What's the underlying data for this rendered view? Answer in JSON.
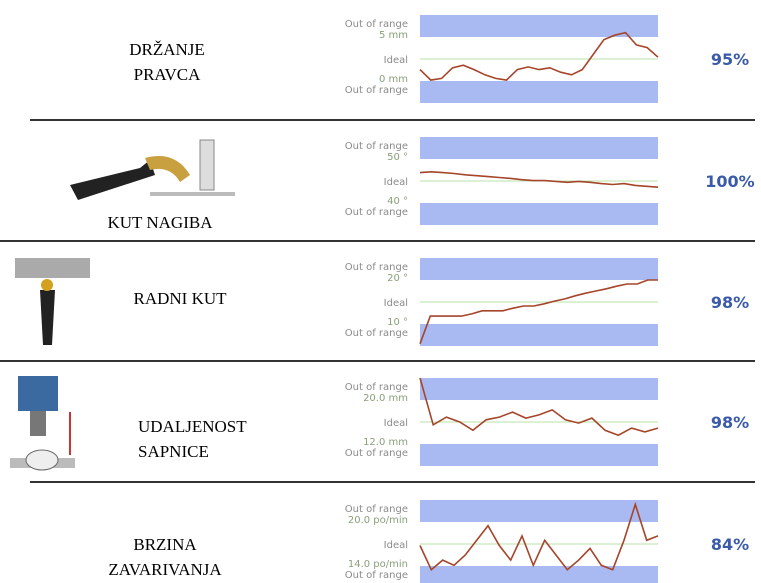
{
  "rows": [
    {
      "label": [
        "DRŽANJE",
        "PRAVCA"
      ],
      "out_top": "Out of range",
      "upper": "5 mm",
      "ideal": "Ideal",
      "lower": "0 mm",
      "out_bottom": "Out of range",
      "score": "95%",
      "ylim": [
        0,
        5
      ],
      "trace": [
        1.3,
        0.1,
        0.3,
        1.5,
        1.8,
        1.3,
        0.7,
        0.3,
        0.1,
        1.3,
        1.6,
        1.3,
        1.5,
        1.0,
        0.7,
        1.3,
        3.0,
        4.7,
        5.2,
        5.5,
        4.1,
        3.8,
        2.7
      ]
    },
    {
      "label": [
        "KUT NAGIBA"
      ],
      "out_top": "Out of range",
      "upper": "50 °",
      "ideal": "Ideal",
      "lower": "40 °",
      "out_bottom": "Out of range",
      "score": "100%",
      "ylim": [
        40,
        50
      ],
      "trace": [
        46.9,
        47.1,
        46.9,
        46.7,
        46.4,
        46.2,
        46.0,
        45.8,
        45.6,
        45.3,
        45.1,
        45.1,
        44.9,
        44.7,
        44.9,
        44.7,
        44.4,
        44.2,
        44.4,
        44.0,
        43.8,
        43.6
      ]
    },
    {
      "label": [
        "RADNI KUT"
      ],
      "out_top": "Out of range",
      "upper": "20 °",
      "ideal": "Ideal",
      "lower": "10 °",
      "out_bottom": "Out of range",
      "score": "98%",
      "ylim": [
        10,
        20
      ],
      "trace": [
        5.5,
        11.8,
        11.8,
        11.8,
        11.8,
        12.3,
        13,
        13,
        13,
        13.6,
        14.1,
        14.1,
        14.6,
        15.2,
        15.7,
        16.4,
        17,
        17.5,
        18,
        18.6,
        19.1,
        19.1,
        20,
        20
      ]
    },
    {
      "label": [
        "UDALJENOST",
        "SAPNICE"
      ],
      "out_top": "Out of range",
      "upper": "20.0 mm",
      "ideal": "Ideal",
      "lower": "12.0 mm",
      "out_bottom": "Out of range",
      "score": "98%",
      "ylim": [
        12,
        20
      ],
      "trace": [
        24,
        15.5,
        16.9,
        16,
        14.5,
        16.4,
        16.9,
        17.8,
        16.7,
        17.3,
        18.2,
        16.4,
        15.8,
        16.7,
        14.5,
        13.6,
        14.9,
        14.2,
        14.9
      ]
    },
    {
      "label": [
        "BRZINA",
        "ZAVARIVANJA"
      ],
      "out_top": "Out of range",
      "upper": "20.0 po/min",
      "ideal": "Ideal",
      "lower": "14.0 po/min",
      "out_bottom": "Out of range",
      "score": "84%",
      "ylim": [
        14,
        20
      ],
      "trace": [
        16.8,
        13.5,
        14.8,
        14.1,
        15.5,
        17.5,
        19.5,
        16.8,
        14.8,
        18.1,
        14.1,
        17.5,
        15.5,
        13.5,
        14.8,
        16.4,
        14.1,
        13.5,
        17.5,
        22.4,
        17.5,
        18.1
      ]
    }
  ]
}
